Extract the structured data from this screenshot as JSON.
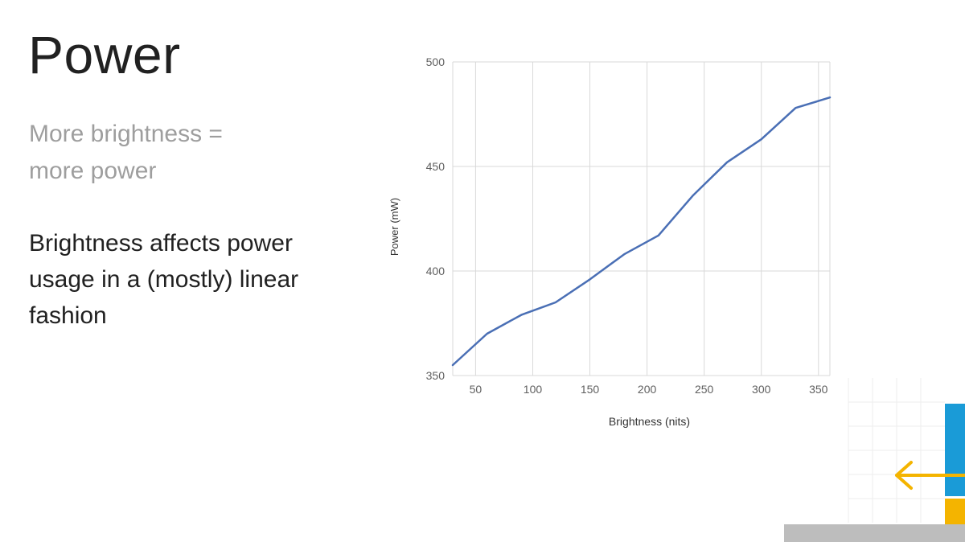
{
  "slide": {
    "title": "Power",
    "subtitle_lines": [
      "More brightness =",
      "more power"
    ],
    "body_lines": [
      "Brightness affects power",
      "usage in a (mostly) linear",
      "fashion"
    ]
  },
  "chart_data": {
    "type": "line",
    "title": "",
    "xlabel": "Brightness (nits)",
    "ylabel": "Power (mW)",
    "xlim": [
      30,
      360
    ],
    "ylim": [
      350,
      500
    ],
    "x_ticks": [
      50,
      100,
      150,
      200,
      250,
      300,
      350
    ],
    "y_ticks": [
      350,
      400,
      450,
      500
    ],
    "grid": true,
    "line_color": "#4a6fb5",
    "series": [
      {
        "x": [
          30,
          60,
          90,
          120,
          150,
          180,
          210,
          240,
          270,
          300,
          330,
          360
        ],
        "values": [
          355,
          370,
          379,
          385,
          396,
          408,
          417,
          436,
          452,
          463,
          478,
          483
        ]
      }
    ]
  },
  "colors": {
    "title": "#212121",
    "muted_text": "#9e9e9e",
    "grid": "#d9d9d9",
    "axis_text": "#5f5f5f",
    "deco_blue": "#1a9bd7",
    "deco_yellow": "#f4b400",
    "deco_gray": "#bdbdbd"
  }
}
